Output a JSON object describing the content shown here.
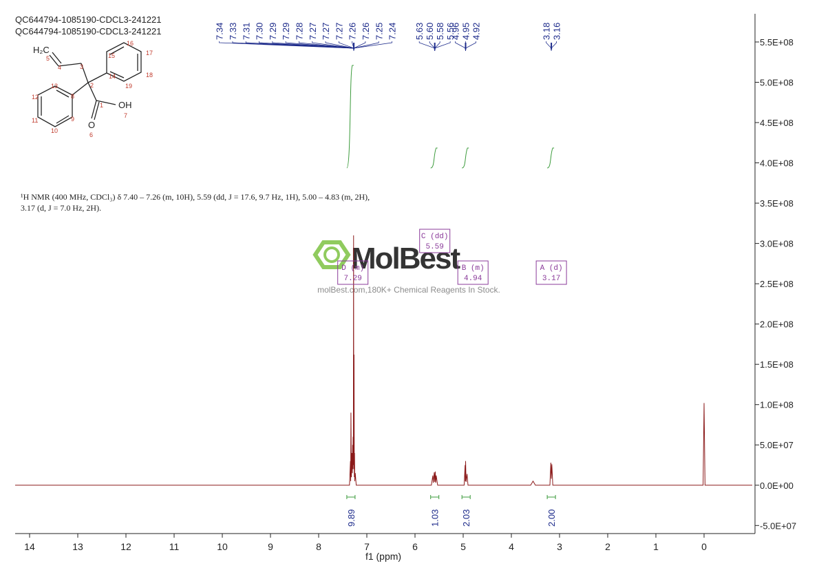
{
  "chart_data": {
    "type": "line",
    "title": "QC644794-1085190-CDCL3-241221",
    "subtitle": "QC644794-1085190-CDCL3-241221",
    "x_label": "f1 (ppm)",
    "xlim": [
      14.3,
      -1.0
    ],
    "xticks": [
      14,
      13,
      12,
      11,
      10,
      9,
      8,
      7,
      6,
      5,
      4,
      3,
      2,
      1,
      0
    ],
    "ylim": [
      -60000000,
      585000000
    ],
    "yticks": [
      {
        "value": -50000000,
        "label": "-5.0E+07"
      },
      {
        "value": 0,
        "label": "0.0E+00"
      },
      {
        "value": 50000000,
        "label": "5.0E+07"
      },
      {
        "value": 100000000,
        "label": "1.0E+08"
      },
      {
        "value": 150000000,
        "label": "1.5E+08"
      },
      {
        "value": 200000000,
        "label": "2.0E+08"
      },
      {
        "value": 250000000,
        "label": "2.5E+08"
      },
      {
        "value": 300000000,
        "label": "3.0E+08"
      },
      {
        "value": 350000000,
        "label": "3.5E+08"
      },
      {
        "value": 400000000,
        "label": "4.0E+08"
      },
      {
        "value": 450000000,
        "label": "4.5E+08"
      },
      {
        "value": 500000000,
        "label": "5.0E+08"
      },
      {
        "value": 550000000,
        "label": "5.5E+08"
      }
    ],
    "series": [
      {
        "color": "#8b1a1a",
        "x": [
          14.3,
          7.36,
          7.34,
          7.335,
          7.33,
          7.32,
          7.31,
          7.3,
          7.295,
          7.29,
          7.285,
          7.28,
          7.275,
          7.27,
          7.265,
          7.26,
          7.255,
          7.25,
          7.24,
          7.22,
          5.66,
          5.63,
          5.62,
          5.6,
          5.59,
          5.58,
          5.57,
          5.56,
          5.53,
          4.98,
          4.96,
          4.955,
          4.95,
          4.94,
          4.92,
          4.9,
          3.6,
          3.55,
          3.5,
          3.2,
          3.18,
          3.17,
          3.16,
          3.14,
          0.02,
          0,
          -0.02,
          -1.0
        ],
        "values": [
          0,
          0,
          30000000,
          5000000,
          90000000,
          10000000,
          40000000,
          15000000,
          50000000,
          20000000,
          60000000,
          25000000,
          310000000,
          20000000,
          162000000,
          10000000,
          40000000,
          5000000,
          15000000,
          0,
          0,
          12000000,
          3000000,
          16000000,
          4000000,
          17000000,
          3000000,
          12000000,
          0,
          0,
          25000000,
          5000000,
          30000000,
          4000000,
          14000000,
          0,
          0,
          5000000,
          0,
          0,
          28000000,
          8000000,
          26000000,
          0,
          0,
          102000000,
          0,
          0
        ]
      }
    ],
    "peak_groups": [
      {
        "x": 7.27,
        "labels": [
          "7.34",
          "7.33",
          "7.31",
          "7.30",
          "7.29",
          "7.29",
          "7.28",
          "7.27",
          "7.27",
          "7.27",
          "7.26",
          "7.26",
          "7.25",
          "7.24"
        ]
      },
      {
        "x": 5.59,
        "labels": [
          "5.63",
          "5.60",
          "5.58",
          "5.56"
        ]
      },
      {
        "x": 4.95,
        "labels": [
          "4.96",
          "4.95",
          "4.92"
        ]
      },
      {
        "x": 3.17,
        "labels": [
          "3.18",
          "3.16"
        ]
      }
    ],
    "integrals": {
      "x": [
        7.33,
        5.59,
        4.94,
        3.17
      ],
      "values": [
        9.89,
        1.03,
        2.03,
        2.0
      ],
      "value_labels": [
        "9.89",
        "1.03",
        "2.03",
        "2.00"
      ]
    },
    "multiplets": [
      {
        "label": "C (dd)",
        "shift": "5.59"
      },
      {
        "label": "D (m)",
        "shift": "7.29"
      },
      {
        "label": "B (m)",
        "shift": "4.94"
      },
      {
        "label": "A (d)",
        "shift": "3.17"
      }
    ],
    "description": [
      "¹H NMR (400 MHz, CDCl₃) δ 7.40 – 7.26 (m, 10H), 5.59 (dd, J = 17.6, 9.7 Hz, 1H), 5.00 – 4.83 (m, 2H),",
      "3.17 (d, J = 7.0 Hz, 2H)."
    ],
    "watermark": {
      "brand": "MolBest",
      "tagline": "molBest.com,180K+ Chemical Reagents In Stock."
    },
    "structure": {
      "atoms": [
        "H₂C",
        "OH",
        "O"
      ],
      "numbers": [
        "1",
        "2",
        "3",
        "4",
        "5",
        "6",
        "7",
        "8",
        "9",
        "10",
        "11",
        "12",
        "13",
        "14",
        "15",
        "16",
        "17",
        "18",
        "19"
      ]
    }
  }
}
